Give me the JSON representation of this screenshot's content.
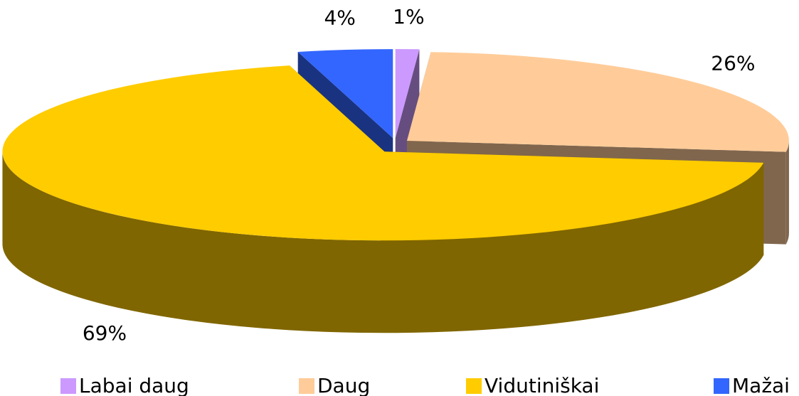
{
  "chart_data": {
    "type": "pie",
    "categories": [
      "Labai daug",
      "Daug",
      "Vidutiniškai",
      "Mažai"
    ],
    "values": [
      1,
      26,
      69,
      4
    ],
    "value_labels": [
      "1%",
      "26%",
      "69%",
      "4%"
    ],
    "colors": [
      "#cc99ff",
      "#ffcc99",
      "#ffcc00",
      "#3366ff"
    ],
    "legend": "bottom"
  }
}
